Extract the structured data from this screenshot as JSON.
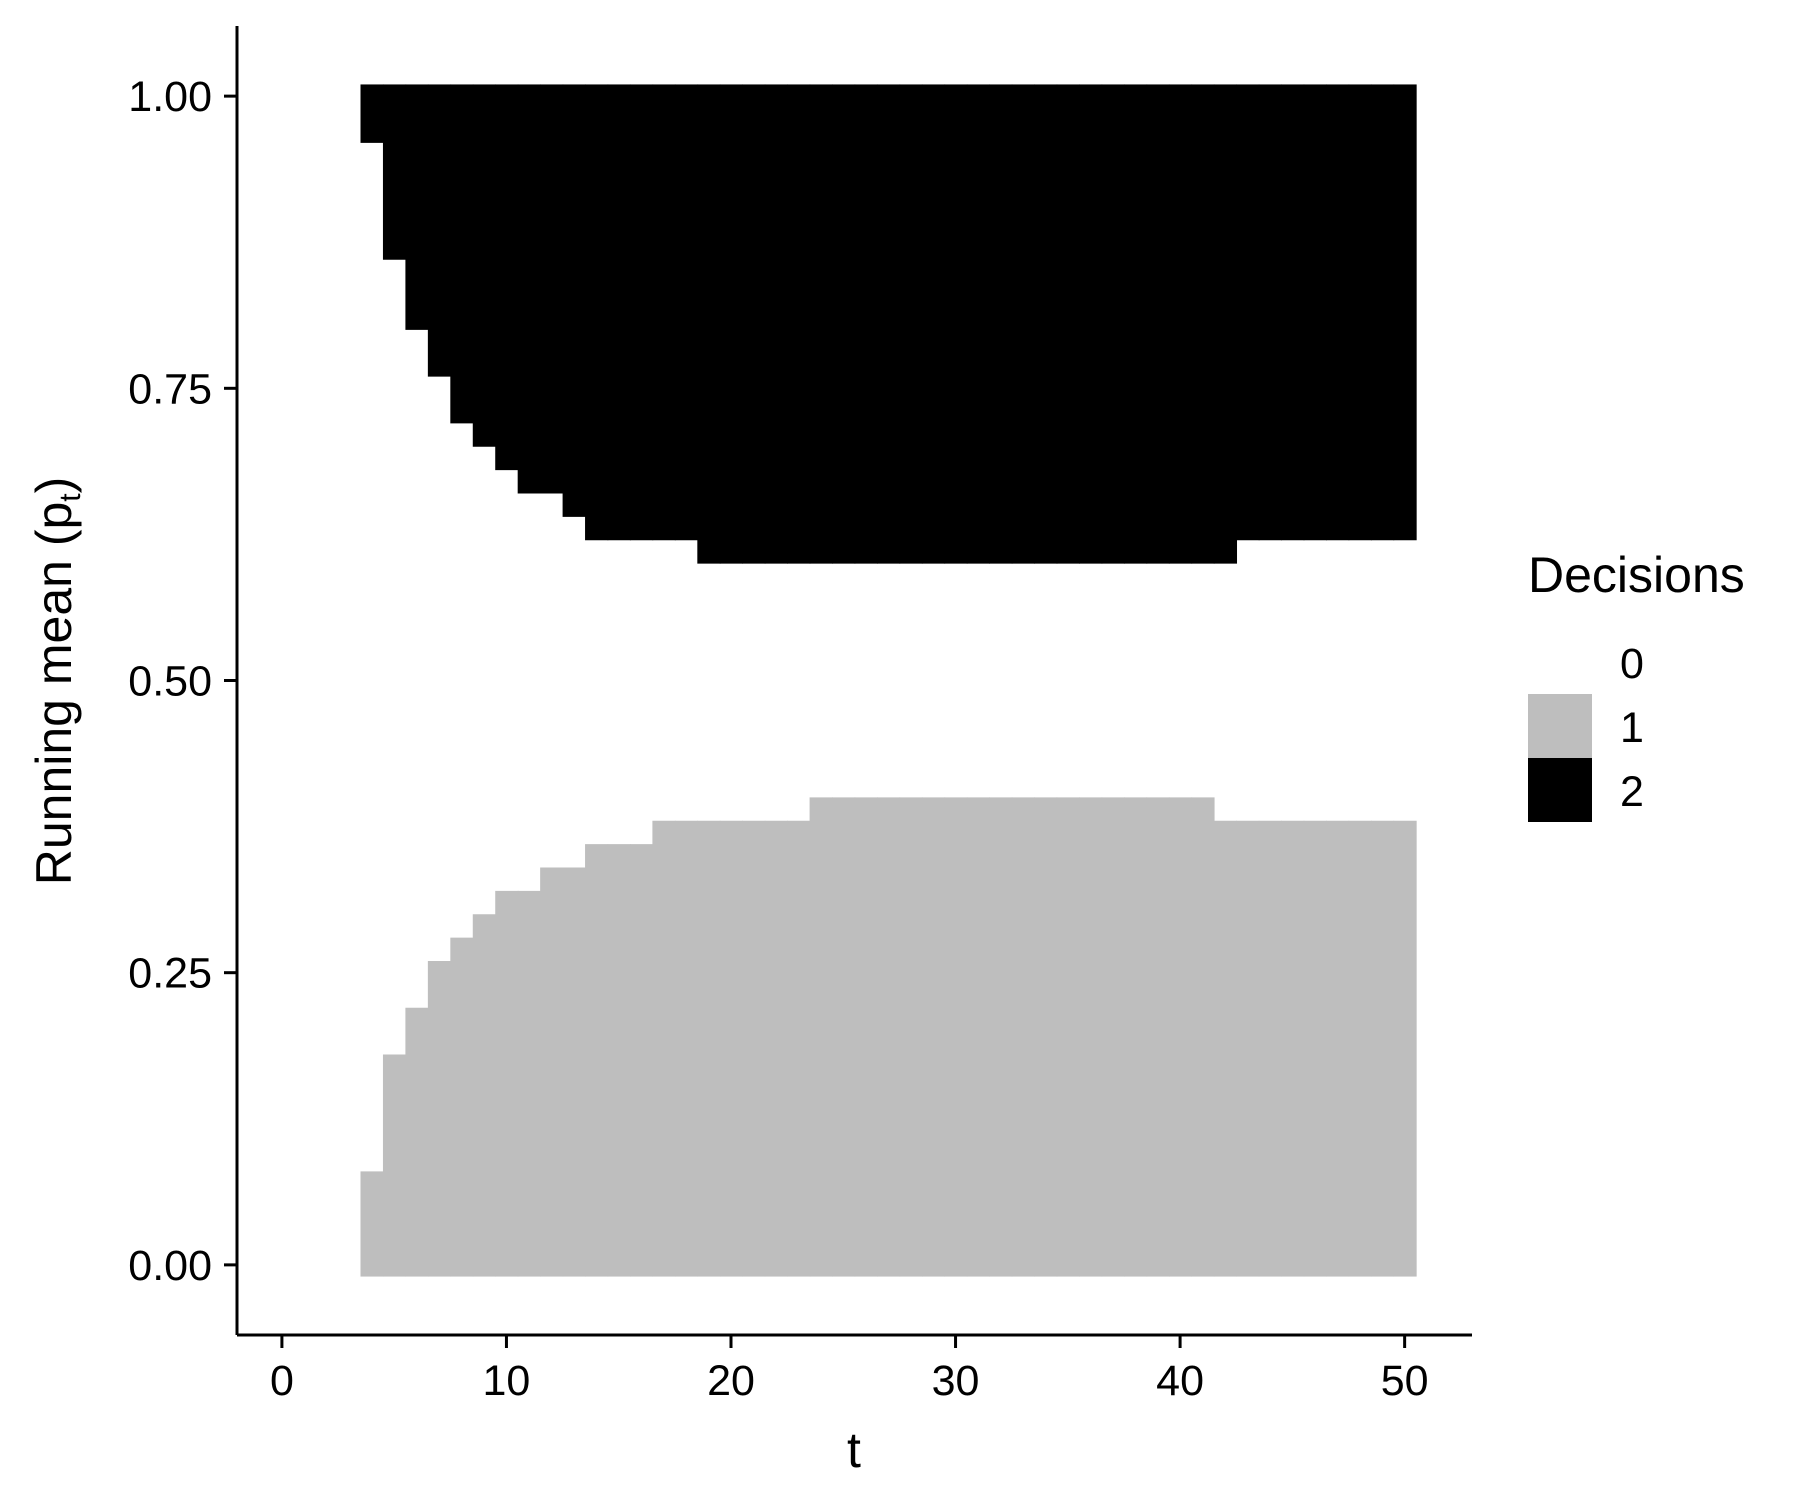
{
  "chart_data": {
    "type": "heatmap",
    "xlabel": "t",
    "ylabel": "Running mean (p",
    "ylabel_subscript": "t",
    "ylabel_close": ")",
    "xlim": [
      -2,
      53
    ],
    "ylim": [
      -0.06,
      1.06
    ],
    "xticks": [
      0,
      10,
      20,
      30,
      40,
      50
    ],
    "xtick_labels": [
      "0",
      "10",
      "20",
      "30",
      "40",
      "50"
    ],
    "yticks": [
      0,
      0.25,
      0.5,
      0.75,
      1
    ],
    "ytick_labels": [
      "0.00",
      "0.25",
      "0.50",
      "0.75",
      "1.00"
    ],
    "t_range": [
      4,
      50
    ],
    "p_range": [
      0,
      1
    ],
    "legend": {
      "title": "Decisions",
      "placement": "right",
      "entries": [
        {
          "label": "0",
          "color": "#ffffff"
        },
        {
          "label": "1",
          "color": "#bebebe"
        },
        {
          "label": "2",
          "color": "#000000"
        }
      ]
    },
    "boundaries": {
      "t": [
        4,
        5,
        6,
        7,
        8,
        9,
        10,
        11,
        12,
        13,
        14,
        15,
        16,
        17,
        18,
        19,
        20,
        21,
        22,
        23,
        24,
        25,
        26,
        27,
        28,
        29,
        30,
        31,
        32,
        33,
        34,
        35,
        36,
        37,
        38,
        39,
        40,
        41,
        42,
        43,
        44,
        45,
        46,
        47,
        48,
        49,
        50
      ],
      "decision_1_upper_p": [
        0.07,
        0.17,
        0.21,
        0.25,
        0.27,
        0.29,
        0.31,
        0.31,
        0.33,
        0.33,
        0.35,
        0.35,
        0.35,
        0.37,
        0.37,
        0.37,
        0.37,
        0.37,
        0.37,
        0.37,
        0.39,
        0.39,
        0.39,
        0.39,
        0.39,
        0.39,
        0.39,
        0.39,
        0.39,
        0.39,
        0.39,
        0.39,
        0.39,
        0.39,
        0.39,
        0.39,
        0.39,
        0.39,
        0.37,
        0.37,
        0.37,
        0.37,
        0.37,
        0.37,
        0.37,
        0.37,
        0.37
      ],
      "decision_2_lower_p": [
        0.97,
        0.87,
        0.81,
        0.77,
        0.73,
        0.71,
        0.69,
        0.67,
        0.67,
        0.65,
        0.63,
        0.63,
        0.63,
        0.63,
        0.63,
        0.61,
        0.61,
        0.61,
        0.61,
        0.61,
        0.61,
        0.61,
        0.61,
        0.61,
        0.61,
        0.61,
        0.61,
        0.61,
        0.61,
        0.61,
        0.61,
        0.61,
        0.61,
        0.61,
        0.61,
        0.61,
        0.61,
        0.61,
        0.61,
        0.63,
        0.63,
        0.63,
        0.63,
        0.63,
        0.63,
        0.63,
        0.63
      ]
    }
  }
}
